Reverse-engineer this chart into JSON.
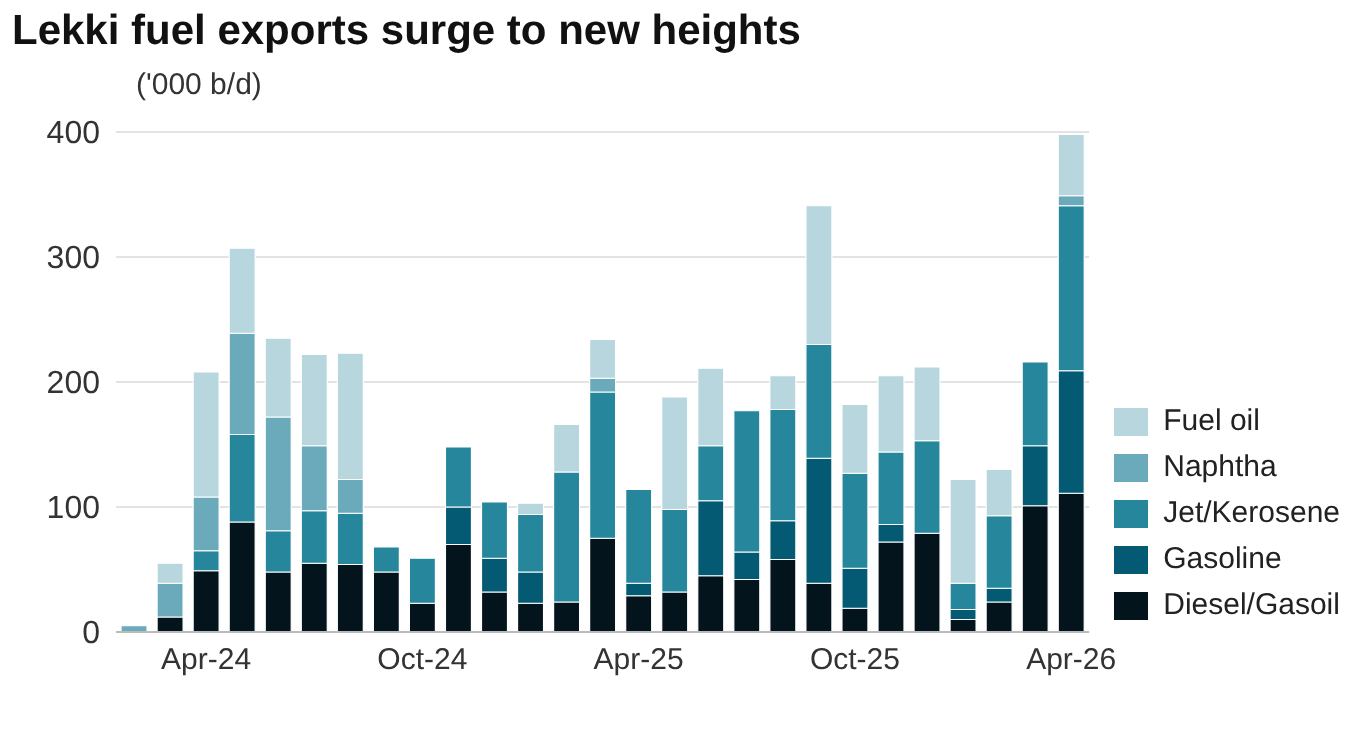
{
  "chart_data": {
    "type": "bar",
    "title": "Lekki fuel exports surge to new heights",
    "ylabel": "('000 b/d)",
    "categories": [
      null,
      null,
      "Apr-24",
      null,
      null,
      null,
      null,
      null,
      "Oct-24",
      null,
      null,
      null,
      null,
      null,
      "Apr-25",
      null,
      null,
      null,
      null,
      null,
      "Oct-25",
      null,
      null,
      null,
      null,
      null,
      "Apr-26"
    ],
    "stacked": true,
    "ylim": [
      0,
      400
    ],
    "yticks": [
      0,
      100,
      200,
      300,
      400
    ],
    "grid": "y",
    "legend": "right",
    "series": [
      {
        "name": "Diesel/Gasoil",
        "color": "#03141c",
        "values": [
          null,
          12,
          49,
          88,
          48,
          55,
          54,
          48,
          23,
          70,
          32,
          23,
          24,
          75,
          29,
          32,
          45,
          42,
          58,
          39,
          19,
          72,
          79,
          10,
          24,
          101,
          111
        ]
      },
      {
        "name": "Gasoline",
        "color": "#035a72",
        "values": [
          null,
          null,
          null,
          null,
          null,
          null,
          null,
          null,
          null,
          30,
          27,
          25,
          null,
          null,
          10,
          null,
          60,
          22,
          31,
          100,
          32,
          14,
          null,
          8,
          11,
          48,
          98
        ]
      },
      {
        "name": "Jet/Kerosene",
        "color": "#25869c",
        "values": [
          null,
          null,
          16,
          70,
          33,
          42,
          41,
          20,
          36,
          48,
          45,
          46,
          104,
          117,
          75,
          66,
          44,
          113,
          89,
          91,
          76,
          58,
          74,
          21,
          58,
          67,
          132
        ]
      },
      {
        "name": "Naphtha",
        "color": "#6aaabb",
        "values": [
          5,
          27,
          43,
          81,
          91,
          52,
          27,
          null,
          null,
          null,
          null,
          null,
          null,
          11,
          null,
          null,
          null,
          null,
          null,
          null,
          null,
          null,
          null,
          null,
          null,
          null,
          8
        ]
      },
      {
        "name": "Fuel oil",
        "color": "#b8d6de",
        "values": [
          null,
          16,
          100,
          68,
          63,
          73,
          101,
          null,
          null,
          null,
          null,
          9,
          38,
          31,
          null,
          90,
          62,
          null,
          27,
          111,
          55,
          61,
          59,
          83,
          37,
          null,
          49
        ]
      }
    ]
  }
}
